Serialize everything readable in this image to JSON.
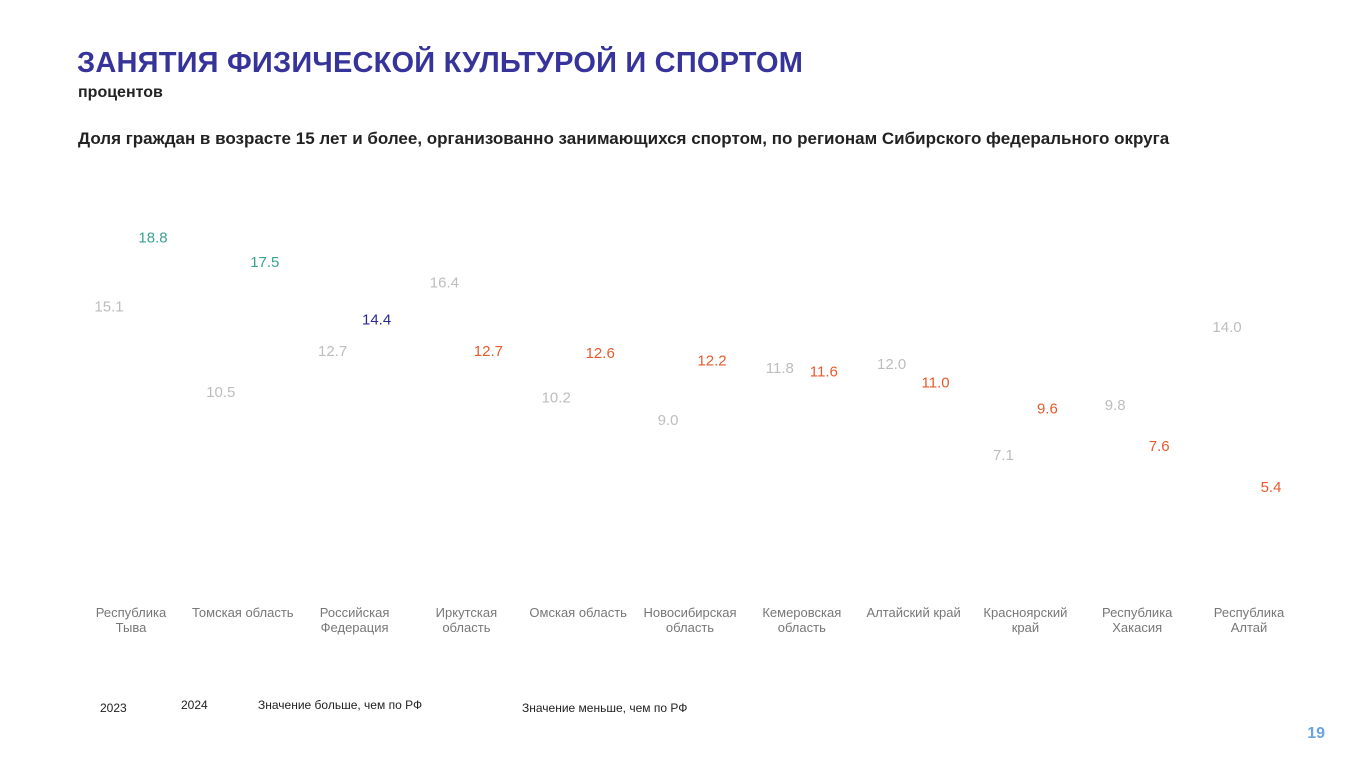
{
  "header": {
    "title": "ЗАНЯТИЯ ФИЗИЧЕСКОЙ КУЛЬТУРОЙ И СПОРТОМ",
    "subtitle": "процентов"
  },
  "legend": {
    "year_2023": "2023",
    "year_2024": "2024",
    "higher": "Значение больше, чем по РФ",
    "lower": "Значение меньше, чем по РФ"
  },
  "page_number": "19",
  "colors": {
    "prev_year": "#bdbdbd",
    "higher": "#3aa38f",
    "reference": "#2b2a8f",
    "lower": "#e65a2c",
    "category_text": "#777777"
  },
  "chart_data": {
    "type": "scatter",
    "title": "Доля граждан в возрасте 15 лет и более, организованно занимающихся спортом, по регионам Сибирского федерального округа",
    "categories": [
      [
        "Республика",
        "Тыва"
      ],
      [
        "Томская область"
      ],
      [
        "Российская",
        "Федерация"
      ],
      [
        "Иркутская",
        "область"
      ],
      [
        "Омская область"
      ],
      [
        "Новосибирская",
        "область"
      ],
      [
        "Кемеровская",
        "область"
      ],
      [
        "Алтайский край"
      ],
      [
        "Красноярский",
        "край"
      ],
      [
        "Республика",
        "Хакасия"
      ],
      [
        "Республика",
        "Алтай"
      ]
    ],
    "series": [
      {
        "name": "2023",
        "values": [
          15.1,
          10.5,
          12.7,
          16.4,
          10.2,
          9.0,
          11.8,
          12.0,
          7.1,
          9.8,
          14.0
        ],
        "labels": [
          "15.1",
          "10.5",
          "12.7",
          "16.4",
          "10.2",
          "9.0",
          "11.8",
          "12.0",
          "7.1",
          "9.8",
          "14.0"
        ]
      },
      {
        "name": "2024",
        "values": [
          18.8,
          17.5,
          14.4,
          12.7,
          12.6,
          12.2,
          11.6,
          11.0,
          9.6,
          7.6,
          5.4
        ],
        "labels": [
          "18.8",
          "17.5",
          "14.4",
          "12.7",
          "12.6",
          "12.2",
          "11.6",
          "11.0",
          "9.6",
          "7.6",
          "5.4"
        ],
        "status": [
          "higher",
          "higher",
          "reference",
          "lower",
          "lower",
          "lower",
          "lower",
          "lower",
          "lower",
          "lower",
          "lower"
        ]
      }
    ]
  }
}
